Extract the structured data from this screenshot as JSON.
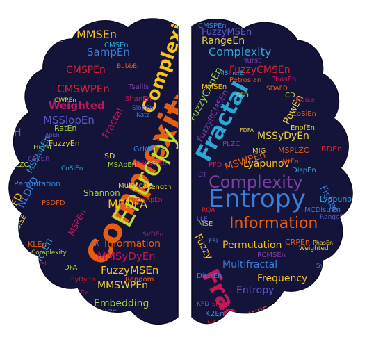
{
  "colors": {
    "background": "#ffffff",
    "hemisphere_fill": "#14133a",
    "palette": [
      "#f8c41c",
      "#e85d12",
      "#d9232c",
      "#c2185b",
      "#a31f76",
      "#7b3fa3",
      "#5b59c9",
      "#3a7fd8",
      "#2da6d6",
      "#b8dc2f",
      "#9fd341",
      "#e9d13c"
    ]
  },
  "left_words": [
    {
      "text": "Complexity",
      "color": "#e85d12"
    },
    {
      "text": "Entropy",
      "color": "#b8dc2f"
    },
    {
      "text": "Complexity",
      "color": "#f8c41c"
    },
    {
      "text": "MMSEn",
      "color": "#f8c41c"
    },
    {
      "text": "SampEn",
      "color": "#3a7fd8"
    },
    {
      "text": "CMSPEn",
      "color": "#d9232c"
    },
    {
      "text": "CMSWPEn",
      "color": "#d9232c"
    },
    {
      "text": "Weighted",
      "color": "#c2185b"
    },
    {
      "text": "MSSlopEn",
      "color": "#5b59c9"
    },
    {
      "text": "Fractal",
      "color": "#c2185b"
    },
    {
      "text": "MFDFA",
      "color": "#f8c41c"
    },
    {
      "text": "Information",
      "color": "#e85d12"
    },
    {
      "text": "MMSyDyEn",
      "color": "#c2185b"
    },
    {
      "text": "FuzzyMSEn",
      "color": "#f8c41c"
    },
    {
      "text": "MMSWPEn",
      "color": "#e9d13c"
    },
    {
      "text": "Embedding",
      "color": "#9fd341"
    },
    {
      "text": "BubbEn",
      "color": "#3a7fd8"
    },
    {
      "text": "MSPEn",
      "color": "#c2185b"
    },
    {
      "text": "IncrEn",
      "color": "#2da6d6"
    },
    {
      "text": "PFD",
      "color": "#f8c41c"
    },
    {
      "text": "KLEn",
      "color": "#e85d12"
    },
    {
      "text": "MSE",
      "color": "#e9d13c"
    },
    {
      "text": "Permutation",
      "color": "#3a7fd8"
    },
    {
      "text": "MSSlopEn",
      "color": "#2da6d6"
    },
    {
      "text": "Shannon",
      "color": "#9fd341"
    },
    {
      "text": "Multiscale",
      "color": "#e9d13c"
    },
    {
      "text": "GridEn",
      "color": "#3a7fd8"
    },
    {
      "text": "MSCoSiEn",
      "color": "#c2185b"
    },
    {
      "text": "Length",
      "color": "#e9d13c"
    },
    {
      "text": "Random",
      "color": "#e85d12"
    },
    {
      "text": "DiffEn",
      "color": "#c2185b"
    },
    {
      "text": "SyDyEn",
      "color": "#d9232c"
    },
    {
      "text": "DFA",
      "color": "#9fd341"
    },
    {
      "text": "HFD",
      "color": "#3a7fd8"
    },
    {
      "text": "MSE",
      "color": "#e85d12"
    },
    {
      "text": "FuzzyEn",
      "color": "#e9d13c"
    },
    {
      "text": "RatEn",
      "color": "#9fd341"
    },
    {
      "text": "Hurst",
      "color": "#9fd341"
    },
    {
      "text": "LZC",
      "color": "#b8dc2f"
    },
    {
      "text": "ShanEn",
      "color": "#c2185b"
    },
    {
      "text": "Tsallis",
      "color": "#7b3fa3"
    },
    {
      "text": "SlopEn",
      "color": "#5b59c9"
    },
    {
      "text": "Katz",
      "color": "#3a7fd8"
    },
    {
      "text": "BubbEn",
      "color": "#e85d12"
    },
    {
      "text": "H",
      "color": "#5b59c9"
    },
    {
      "text": "CoSiEn",
      "color": "#2da6d6"
    },
    {
      "text": "LLE",
      "color": "#2da6d6"
    },
    {
      "text": "NLDFD",
      "color": "#3a7fd8"
    },
    {
      "text": "PSDFD",
      "color": "#e85d12"
    },
    {
      "text": "CWPEn",
      "color": "#e9d13c"
    },
    {
      "text": "Fractal",
      "color": "#d9232c"
    },
    {
      "text": "Complexity",
      "color": "#9fd341"
    },
    {
      "text": "SVDEn",
      "color": "#a31f76"
    },
    {
      "text": "FuzzyApEn",
      "color": "#d9232c"
    },
    {
      "text": "SD",
      "color": "#e9d13c"
    },
    {
      "text": "RR",
      "color": "#3a7fd8"
    },
    {
      "text": "CMSEn",
      "color": "#2da6d6"
    },
    {
      "text": "PLZC",
      "color": "#3a7fd8"
    },
    {
      "text": "SpEn",
      "color": "#a31f76"
    },
    {
      "text": "ApEn",
      "color": "#5b59c9"
    },
    {
      "text": "cApEn",
      "color": "#7b3fa3"
    },
    {
      "text": "MSApEn",
      "color": "#9fd341"
    }
  ],
  "right_words": [
    {
      "text": "Entropy",
      "color": "#3a7fd8"
    },
    {
      "text": "Fractal",
      "color": "#2da6d6"
    },
    {
      "text": "Complexity",
      "color": "#7b3fa3"
    },
    {
      "text": "Information",
      "color": "#e85d12"
    },
    {
      "text": "Fractal",
      "color": "#c2185b"
    },
    {
      "text": "Complexity",
      "color": "#2da6d6"
    },
    {
      "text": "FuzzyMSEn",
      "color": "#5b59c9"
    },
    {
      "text": "RangeEn",
      "color": "#e9d13c"
    },
    {
      "text": "FuzzyCMSEn",
      "color": "#d9232c"
    },
    {
      "text": "Lyapunov",
      "color": "#f8c41c"
    },
    {
      "text": "MSSyDyEn",
      "color": "#e9d13c"
    },
    {
      "text": "MSWPEn",
      "color": "#e85d12"
    },
    {
      "text": "Permutation",
      "color": "#f8c41c"
    },
    {
      "text": "Multifractal",
      "color": "#3a7fd8"
    },
    {
      "text": "Frequency",
      "color": "#f8c41c"
    },
    {
      "text": "Entropy",
      "color": "#5b59c9"
    },
    {
      "text": "FuzzyCApEn",
      "color": "#9fd341"
    },
    {
      "text": "FuzzyRCMSEn",
      "color": "#7b3fa3"
    },
    {
      "text": "PowEn",
      "color": "#e9d13c"
    },
    {
      "text": "MSPLZC",
      "color": "#e85d12"
    },
    {
      "text": "RDEn",
      "color": "#d9232c"
    },
    {
      "text": "DispEn",
      "color": "#2da6d6"
    },
    {
      "text": "Fisher",
      "color": "#3a7fd8"
    },
    {
      "text": "Lyapunov",
      "color": "#2da6d6"
    },
    {
      "text": "MCDistrEn",
      "color": "#3a7fd8"
    },
    {
      "text": "RangeEn",
      "color": "#5b59c9"
    },
    {
      "text": "CRPEn",
      "color": "#e85d12"
    },
    {
      "text": "PhasEn",
      "color": "#e9d13c"
    },
    {
      "text": "RCMSEn",
      "color": "#7b3fa3"
    },
    {
      "text": "WPEn",
      "color": "#e85d12"
    },
    {
      "text": "K2En",
      "color": "#3a7fd8"
    },
    {
      "text": "KFD",
      "color": "#5b59c9"
    },
    {
      "text": "DistrEn",
      "color": "#3a7fd8"
    },
    {
      "text": "MSWPEn",
      "color": "#c2185b"
    },
    {
      "text": "RQA",
      "color": "#d9232c"
    },
    {
      "text": "MIG",
      "color": "#e9d13c"
    },
    {
      "text": "Noise",
      "color": "#c2185b"
    },
    {
      "text": "CoSiEn",
      "color": "#e85d12"
    },
    {
      "text": "EnofEn",
      "color": "#e9d13c"
    },
    {
      "text": "SFD",
      "color": "#b8dc2f"
    },
    {
      "text": "PhasEn",
      "color": "#c2185b"
    },
    {
      "text": "SDAFD",
      "color": "#e85d12"
    },
    {
      "text": "CD",
      "color": "#b8dc2f"
    },
    {
      "text": "Petrosian",
      "color": "#e85d12"
    },
    {
      "text": "MSIncrEn",
      "color": "#2da6d6"
    },
    {
      "text": "MMSEn",
      "color": "#f8c41c"
    },
    {
      "text": "CMSPEn",
      "color": "#3a7fd8"
    },
    {
      "text": "Hurst",
      "color": "#7b3fa3"
    },
    {
      "text": "DT",
      "color": "#7b3fa3"
    },
    {
      "text": "SPEn",
      "color": "#d9232c"
    },
    {
      "text": "Information",
      "color": "#d9232c"
    },
    {
      "text": "Weighted",
      "color": "#e9d13c"
    },
    {
      "text": "Fuzzy",
      "color": "#f8c41c"
    },
    {
      "text": "MSPEn",
      "color": "#d9232c"
    },
    {
      "text": "PLZC",
      "color": "#7b3fa3"
    },
    {
      "text": "FSI",
      "color": "#3a7fd8"
    },
    {
      "text": "LLE",
      "color": "#5b59c9"
    },
    {
      "text": "AttEn",
      "color": "#e85d12"
    },
    {
      "text": "FDFA",
      "color": "#e9d13c"
    },
    {
      "text": "PFD",
      "color": "#c2185b"
    },
    {
      "text": "MSE",
      "color": "#9fd341"
    },
    {
      "text": "SyDyEn",
      "color": "#3a7fd8"
    }
  ]
}
